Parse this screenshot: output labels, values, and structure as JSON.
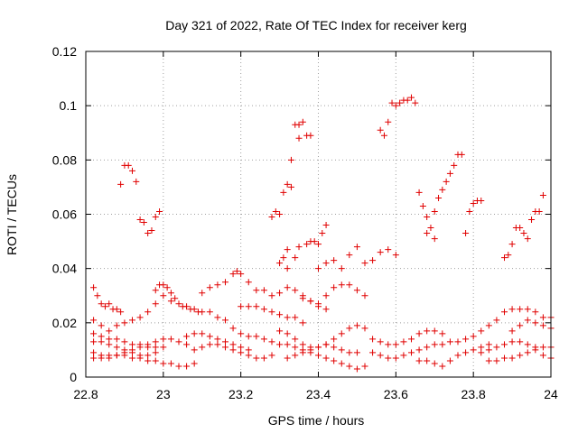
{
  "chart_data": {
    "type": "scatter",
    "title": "Day 321 of 2022, Rate Of TEC Index for receiver kerg",
    "xlabel": "GPS time / hours",
    "ylabel": "ROTI / TECUs",
    "xlim": [
      22.8,
      24.0
    ],
    "ylim": [
      0,
      0.12
    ],
    "xticks": [
      "22.8",
      "23",
      "23.2",
      "23.4",
      "23.6",
      "23.8",
      "24"
    ],
    "yticks": [
      "0",
      "0.02",
      "0.04",
      "0.06",
      "0.08",
      "0.1",
      "0.12"
    ],
    "grid": true,
    "marker": "+",
    "color": "#e00000",
    "points": [
      [
        22.82,
        0.033
      ],
      [
        22.83,
        0.03
      ],
      [
        22.84,
        0.027
      ],
      [
        22.85,
        0.026
      ],
      [
        22.86,
        0.027
      ],
      [
        22.87,
        0.025
      ],
      [
        22.88,
        0.025
      ],
      [
        22.89,
        0.024
      ],
      [
        22.82,
        0.021
      ],
      [
        22.84,
        0.019
      ],
      [
        22.86,
        0.017
      ],
      [
        22.88,
        0.019
      ],
      [
        22.9,
        0.02
      ],
      [
        22.92,
        0.021
      ],
      [
        22.94,
        0.022
      ],
      [
        22.96,
        0.024
      ],
      [
        22.98,
        0.027
      ],
      [
        23.0,
        0.03
      ],
      [
        23.02,
        0.028
      ],
      [
        22.82,
        0.016
      ],
      [
        22.84,
        0.015
      ],
      [
        22.86,
        0.014
      ],
      [
        22.88,
        0.014
      ],
      [
        22.9,
        0.013
      ],
      [
        22.92,
        0.012
      ],
      [
        22.94,
        0.012
      ],
      [
        22.96,
        0.011
      ],
      [
        22.98,
        0.011
      ],
      [
        23.0,
        0.011
      ],
      [
        22.82,
        0.013
      ],
      [
        22.84,
        0.013
      ],
      [
        22.86,
        0.012
      ],
      [
        22.88,
        0.011
      ],
      [
        22.9,
        0.01
      ],
      [
        22.92,
        0.009
      ],
      [
        22.94,
        0.008
      ],
      [
        22.96,
        0.008
      ],
      [
        22.98,
        0.009
      ],
      [
        22.82,
        0.009
      ],
      [
        22.84,
        0.008
      ],
      [
        22.86,
        0.008
      ],
      [
        22.88,
        0.008
      ],
      [
        22.9,
        0.008
      ],
      [
        22.92,
        0.007
      ],
      [
        22.94,
        0.007
      ],
      [
        22.96,
        0.006
      ],
      [
        22.98,
        0.006
      ],
      [
        23.0,
        0.005
      ],
      [
        23.02,
        0.005
      ],
      [
        23.04,
        0.004
      ],
      [
        23.06,
        0.004
      ],
      [
        23.08,
        0.005
      ],
      [
        22.82,
        0.007
      ],
      [
        22.84,
        0.007
      ],
      [
        22.86,
        0.007
      ],
      [
        22.88,
        0.008
      ],
      [
        22.9,
        0.009
      ],
      [
        22.92,
        0.01
      ],
      [
        22.94,
        0.011
      ],
      [
        22.96,
        0.012
      ],
      [
        22.98,
        0.013
      ],
      [
        23.0,
        0.014
      ],
      [
        23.02,
        0.014
      ],
      [
        23.04,
        0.013
      ],
      [
        23.06,
        0.012
      ],
      [
        22.89,
        0.071
      ],
      [
        22.9,
        0.078
      ],
      [
        22.91,
        0.078
      ],
      [
        22.92,
        0.076
      ],
      [
        22.93,
        0.072
      ],
      [
        22.94,
        0.058
      ],
      [
        22.95,
        0.057
      ],
      [
        22.96,
        0.053
      ],
      [
        22.97,
        0.054
      ],
      [
        22.98,
        0.059
      ],
      [
        22.99,
        0.061
      ],
      [
        22.98,
        0.032
      ],
      [
        22.99,
        0.034
      ],
      [
        23.0,
        0.034
      ],
      [
        23.01,
        0.033
      ],
      [
        23.02,
        0.031
      ],
      [
        23.03,
        0.029
      ],
      [
        23.04,
        0.027
      ],
      [
        23.05,
        0.026
      ],
      [
        23.06,
        0.026
      ],
      [
        23.07,
        0.025
      ],
      [
        23.08,
        0.025
      ],
      [
        23.09,
        0.024
      ],
      [
        23.1,
        0.024
      ],
      [
        23.12,
        0.024
      ],
      [
        23.14,
        0.022
      ],
      [
        23.16,
        0.021
      ],
      [
        23.18,
        0.018
      ],
      [
        23.2,
        0.016
      ],
      [
        23.22,
        0.015
      ],
      [
        23.24,
        0.015
      ],
      [
        23.26,
        0.014
      ],
      [
        23.28,
        0.013
      ],
      [
        23.1,
        0.031
      ],
      [
        23.12,
        0.033
      ],
      [
        23.14,
        0.034
      ],
      [
        23.16,
        0.035
      ],
      [
        23.18,
        0.038
      ],
      [
        23.19,
        0.039
      ],
      [
        23.2,
        0.038
      ],
      [
        23.22,
        0.035
      ],
      [
        23.24,
        0.032
      ],
      [
        23.06,
        0.015
      ],
      [
        23.08,
        0.016
      ],
      [
        23.1,
        0.016
      ],
      [
        23.12,
        0.015
      ],
      [
        23.14,
        0.014
      ],
      [
        23.16,
        0.013
      ],
      [
        23.18,
        0.012
      ],
      [
        23.2,
        0.011
      ],
      [
        23.22,
        0.01
      ],
      [
        23.08,
        0.01
      ],
      [
        23.1,
        0.011
      ],
      [
        23.12,
        0.012
      ],
      [
        23.14,
        0.012
      ],
      [
        23.16,
        0.011
      ],
      [
        23.18,
        0.01
      ],
      [
        23.2,
        0.009
      ],
      [
        23.22,
        0.008
      ],
      [
        23.24,
        0.007
      ],
      [
        23.26,
        0.007
      ],
      [
        23.28,
        0.008
      ],
      [
        23.2,
        0.026
      ],
      [
        23.22,
        0.026
      ],
      [
        23.24,
        0.026
      ],
      [
        23.26,
        0.025
      ],
      [
        23.28,
        0.024
      ],
      [
        23.3,
        0.023
      ],
      [
        23.32,
        0.022
      ],
      [
        23.34,
        0.022
      ],
      [
        23.36,
        0.02
      ],
      [
        23.26,
        0.032
      ],
      [
        23.28,
        0.03
      ],
      [
        23.3,
        0.031
      ],
      [
        23.32,
        0.033
      ],
      [
        23.34,
        0.032
      ],
      [
        23.36,
        0.03
      ],
      [
        23.38,
        0.028
      ],
      [
        23.4,
        0.026
      ],
      [
        23.42,
        0.025
      ],
      [
        23.28,
        0.059
      ],
      [
        23.29,
        0.061
      ],
      [
        23.3,
        0.06
      ],
      [
        23.3,
        0.042
      ],
      [
        23.31,
        0.044
      ],
      [
        23.32,
        0.047
      ],
      [
        23.31,
        0.068
      ],
      [
        23.32,
        0.071
      ],
      [
        23.33,
        0.07
      ],
      [
        23.33,
        0.08
      ],
      [
        23.34,
        0.093
      ],
      [
        23.35,
        0.088
      ],
      [
        23.35,
        0.093
      ],
      [
        23.36,
        0.094
      ],
      [
        23.37,
        0.089
      ],
      [
        23.38,
        0.089
      ],
      [
        23.32,
        0.04
      ],
      [
        23.34,
        0.044
      ],
      [
        23.35,
        0.048
      ],
      [
        23.37,
        0.049
      ],
      [
        23.38,
        0.05
      ],
      [
        23.39,
        0.05
      ],
      [
        23.4,
        0.049
      ],
      [
        23.41,
        0.053
      ],
      [
        23.42,
        0.056
      ],
      [
        23.36,
        0.029
      ],
      [
        23.38,
        0.028
      ],
      [
        23.4,
        0.027
      ],
      [
        23.42,
        0.03
      ],
      [
        23.44,
        0.033
      ],
      [
        23.46,
        0.034
      ],
      [
        23.48,
        0.034
      ],
      [
        23.5,
        0.032
      ],
      [
        23.52,
        0.03
      ],
      [
        23.4,
        0.04
      ],
      [
        23.42,
        0.042
      ],
      [
        23.44,
        0.043
      ],
      [
        23.46,
        0.04
      ],
      [
        23.48,
        0.045
      ],
      [
        23.5,
        0.048
      ],
      [
        23.52,
        0.042
      ],
      [
        23.54,
        0.043
      ],
      [
        23.56,
        0.046
      ],
      [
        23.58,
        0.047
      ],
      [
        23.6,
        0.045
      ],
      [
        23.3,
        0.017
      ],
      [
        23.32,
        0.016
      ],
      [
        23.34,
        0.014
      ],
      [
        23.36,
        0.012
      ],
      [
        23.38,
        0.011
      ],
      [
        23.4,
        0.011
      ],
      [
        23.42,
        0.012
      ],
      [
        23.44,
        0.014
      ],
      [
        23.46,
        0.016
      ],
      [
        23.48,
        0.018
      ],
      [
        23.5,
        0.019
      ],
      [
        23.52,
        0.018
      ],
      [
        23.3,
        0.012
      ],
      [
        23.32,
        0.012
      ],
      [
        23.34,
        0.011
      ],
      [
        23.36,
        0.01
      ],
      [
        23.38,
        0.009
      ],
      [
        23.4,
        0.008
      ],
      [
        23.42,
        0.007
      ],
      [
        23.44,
        0.006
      ],
      [
        23.46,
        0.005
      ],
      [
        23.48,
        0.004
      ],
      [
        23.5,
        0.003
      ],
      [
        23.52,
        0.004
      ],
      [
        23.32,
        0.007
      ],
      [
        23.34,
        0.008
      ],
      [
        23.36,
        0.009
      ],
      [
        23.38,
        0.01
      ],
      [
        23.4,
        0.011
      ],
      [
        23.42,
        0.012
      ],
      [
        23.44,
        0.011
      ],
      [
        23.46,
        0.01
      ],
      [
        23.48,
        0.009
      ],
      [
        23.5,
        0.009
      ],
      [
        23.54,
        0.014
      ],
      [
        23.56,
        0.013
      ],
      [
        23.58,
        0.012
      ],
      [
        23.6,
        0.012
      ],
      [
        23.62,
        0.013
      ],
      [
        23.64,
        0.014
      ],
      [
        23.66,
        0.016
      ],
      [
        23.68,
        0.017
      ],
      [
        23.7,
        0.017
      ],
      [
        23.72,
        0.016
      ],
      [
        23.54,
        0.009
      ],
      [
        23.56,
        0.008
      ],
      [
        23.58,
        0.007
      ],
      [
        23.6,
        0.007
      ],
      [
        23.62,
        0.008
      ],
      [
        23.64,
        0.009
      ],
      [
        23.66,
        0.01
      ],
      [
        23.68,
        0.011
      ],
      [
        23.7,
        0.012
      ],
      [
        23.72,
        0.012
      ],
      [
        23.56,
        0.091
      ],
      [
        23.57,
        0.089
      ],
      [
        23.58,
        0.094
      ],
      [
        23.59,
        0.101
      ],
      [
        23.6,
        0.1
      ],
      [
        23.61,
        0.101
      ],
      [
        23.62,
        0.102
      ],
      [
        23.63,
        0.102
      ],
      [
        23.64,
        0.103
      ],
      [
        23.65,
        0.101
      ],
      [
        23.66,
        0.068
      ],
      [
        23.67,
        0.063
      ],
      [
        23.68,
        0.059
      ],
      [
        23.68,
        0.053
      ],
      [
        23.69,
        0.055
      ],
      [
        23.7,
        0.051
      ],
      [
        23.7,
        0.061
      ],
      [
        23.71,
        0.066
      ],
      [
        23.72,
        0.069
      ],
      [
        23.73,
        0.072
      ],
      [
        23.74,
        0.075
      ],
      [
        23.75,
        0.078
      ],
      [
        23.76,
        0.082
      ],
      [
        23.77,
        0.082
      ],
      [
        23.78,
        0.053
      ],
      [
        23.79,
        0.061
      ],
      [
        23.8,
        0.064
      ],
      [
        23.81,
        0.065
      ],
      [
        23.82,
        0.065
      ],
      [
        23.66,
        0.006
      ],
      [
        23.68,
        0.006
      ],
      [
        23.7,
        0.005
      ],
      [
        23.72,
        0.004
      ],
      [
        23.74,
        0.006
      ],
      [
        23.76,
        0.008
      ],
      [
        23.78,
        0.009
      ],
      [
        23.8,
        0.01
      ],
      [
        23.82,
        0.011
      ],
      [
        23.84,
        0.012
      ],
      [
        23.74,
        0.013
      ],
      [
        23.76,
        0.013
      ],
      [
        23.78,
        0.014
      ],
      [
        23.8,
        0.015
      ],
      [
        23.82,
        0.017
      ],
      [
        23.84,
        0.019
      ],
      [
        23.86,
        0.021
      ],
      [
        23.88,
        0.024
      ],
      [
        23.9,
        0.025
      ],
      [
        23.92,
        0.025
      ],
      [
        23.94,
        0.025
      ],
      [
        23.96,
        0.024
      ],
      [
        23.98,
        0.022
      ],
      [
        24.0,
        0.022
      ],
      [
        23.82,
        0.009
      ],
      [
        23.84,
        0.01
      ],
      [
        23.86,
        0.011
      ],
      [
        23.88,
        0.012
      ],
      [
        23.9,
        0.013
      ],
      [
        23.92,
        0.013
      ],
      [
        23.94,
        0.012
      ],
      [
        23.96,
        0.011
      ],
      [
        23.98,
        0.011
      ],
      [
        24.0,
        0.011
      ],
      [
        23.84,
        0.006
      ],
      [
        23.86,
        0.006
      ],
      [
        23.88,
        0.007
      ],
      [
        23.9,
        0.007
      ],
      [
        23.92,
        0.008
      ],
      [
        23.94,
        0.009
      ],
      [
        23.96,
        0.01
      ],
      [
        23.98,
        0.008
      ],
      [
        24.0,
        0.007
      ],
      [
        23.88,
        0.044
      ],
      [
        23.89,
        0.045
      ],
      [
        23.9,
        0.049
      ],
      [
        23.91,
        0.055
      ],
      [
        23.92,
        0.055
      ],
      [
        23.93,
        0.053
      ],
      [
        23.94,
        0.051
      ],
      [
        23.95,
        0.058
      ],
      [
        23.96,
        0.061
      ],
      [
        23.97,
        0.061
      ],
      [
        23.98,
        0.067
      ],
      [
        23.9,
        0.017
      ],
      [
        23.92,
        0.019
      ],
      [
        23.94,
        0.021
      ],
      [
        23.96,
        0.02
      ],
      [
        23.98,
        0.019
      ],
      [
        24.0,
        0.018
      ]
    ]
  }
}
